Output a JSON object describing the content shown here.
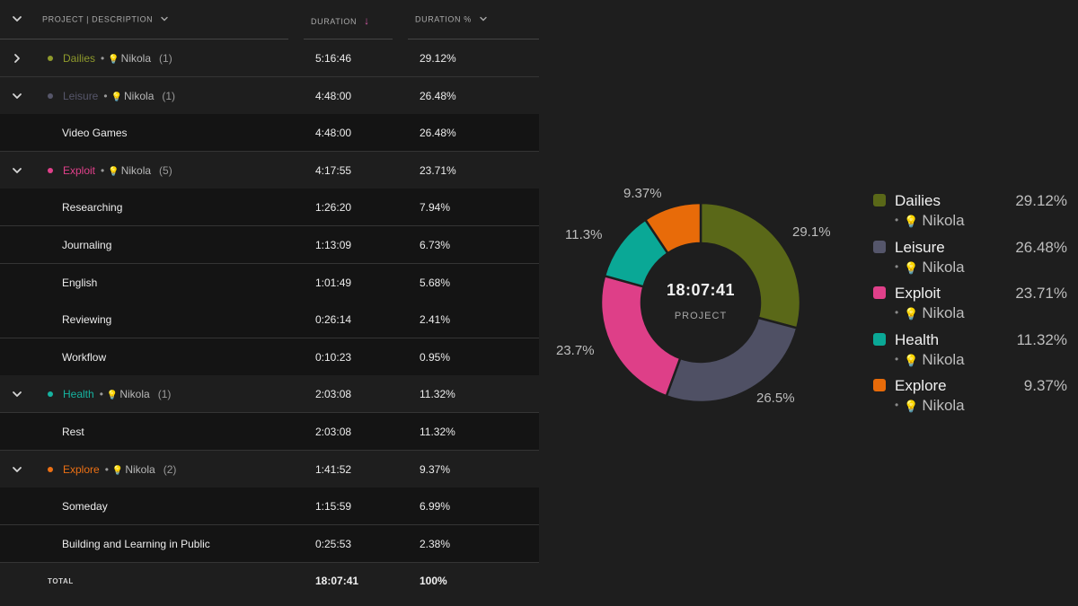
{
  "table": {
    "headers": {
      "project": "PROJECT | DESCRIPTION",
      "duration": "DURATION",
      "percent": "DURATION %"
    },
    "rows": [
      {
        "kind": "group",
        "name": "Dailies",
        "client": "Nikola",
        "count": "(1)",
        "duration": "5:16:46",
        "percent": "29.12%",
        "color": "#8f9a2c",
        "expanded": false
      },
      {
        "kind": "group",
        "name": "Leisure",
        "client": "Nikola",
        "count": "(1)",
        "duration": "4:48:00",
        "percent": "26.48%",
        "color": "#56566a",
        "expanded": true
      },
      {
        "kind": "child",
        "name": "Video Games",
        "duration": "4:48:00",
        "percent": "26.48%"
      },
      {
        "kind": "group",
        "name": "Exploit",
        "client": "Nikola",
        "count": "(5)",
        "duration": "4:17:55",
        "percent": "23.71%",
        "color": "#e0408a",
        "expanded": true
      },
      {
        "kind": "child",
        "name": "Researching",
        "duration": "1:26:20",
        "percent": "7.94%"
      },
      {
        "kind": "child",
        "name": "Journaling",
        "duration": "1:13:09",
        "percent": "6.73%"
      },
      {
        "kind": "child",
        "name": "English",
        "duration": "1:01:49",
        "percent": "5.68%"
      },
      {
        "kind": "child",
        "name": "Reviewing",
        "duration": "0:26:14",
        "percent": "2.41%"
      },
      {
        "kind": "child",
        "name": "Workflow",
        "duration": "0:10:23",
        "percent": "0.95%"
      },
      {
        "kind": "group",
        "name": "Health",
        "client": "Nikola",
        "count": "(1)",
        "duration": "2:03:08",
        "percent": "11.32%",
        "color": "#16b3a0",
        "expanded": true
      },
      {
        "kind": "child",
        "name": "Rest",
        "duration": "2:03:08",
        "percent": "11.32%"
      },
      {
        "kind": "group",
        "name": "Explore",
        "client": "Nikola",
        "count": "(2)",
        "duration": "1:41:52",
        "percent": "9.37%",
        "color": "#ec7014",
        "expanded": true
      },
      {
        "kind": "child",
        "name": "Someday",
        "duration": "1:15:59",
        "percent": "6.99%"
      },
      {
        "kind": "child",
        "name": "Building and Learning in Public",
        "duration": "0:25:53",
        "percent": "2.38%"
      }
    ],
    "total": {
      "label": "TOTAL",
      "duration": "18:07:41",
      "percent": "100%"
    }
  },
  "chart_data": {
    "type": "pie",
    "donut": true,
    "center_value": "18:07:41",
    "center_label": "PROJECT",
    "slices": [
      {
        "name": "Dailies",
        "value": 29.12,
        "label": "29.1%",
        "color": "#5a6818"
      },
      {
        "name": "Leisure",
        "value": 26.48,
        "label": "26.5%",
        "color": "#4f5064"
      },
      {
        "name": "Exploit",
        "value": 23.71,
        "label": "23.7%",
        "color": "#de3f88"
      },
      {
        "name": "Health",
        "value": 11.32,
        "label": "11.3%",
        "color": "#0aa896"
      },
      {
        "name": "Explore",
        "value": 9.37,
        "label": "9.37%",
        "color": "#e86b09"
      }
    ],
    "legend_placement": "right"
  },
  "legend": {
    "items": [
      {
        "name": "Dailies",
        "client": "Nikola",
        "percent": "29.12%",
        "color": "#5a6818"
      },
      {
        "name": "Leisure",
        "client": "Nikola",
        "percent": "26.48%",
        "color": "#55566b"
      },
      {
        "name": "Exploit",
        "client": "Nikola",
        "percent": "23.71%",
        "color": "#e0408a"
      },
      {
        "name": "Health",
        "client": "Nikola",
        "percent": "11.32%",
        "color": "#0aa896"
      },
      {
        "name": "Explore",
        "client": "Nikola",
        "percent": "9.37%",
        "color": "#e86b09"
      }
    ]
  }
}
